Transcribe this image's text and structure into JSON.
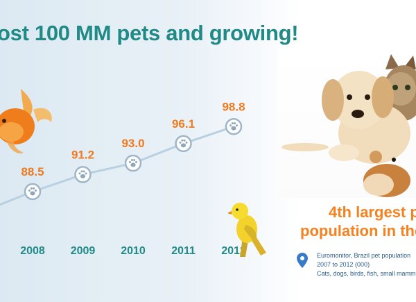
{
  "headline": "ost 100 MM pets and growing!",
  "chart_data": {
    "type": "line",
    "x": [
      "2008",
      "2009",
      "2010",
      "2011",
      "2012"
    ],
    "series": [
      {
        "values": [
          88.5,
          91.2,
          93.0,
          96.1,
          98.8
        ]
      }
    ],
    "value_labels": [
      "88.5",
      "91.2",
      "93.0",
      "96.1",
      "98.8"
    ],
    "marker": "paw-icon",
    "line_color": "#b8d0e2",
    "label_color": "#f07a1e",
    "year_color": "#1f8a86",
    "grid": false,
    "legend": "none"
  },
  "stat": {
    "line1": "4th largest pe",
    "line2": "population in the",
    "color": "#f58220"
  },
  "source": {
    "icon": "location-pin-icon",
    "line1": "Euromonitor, Brazil pet population",
    "line2": "2007 to 2012 (000)",
    "line3": "Cats, dogs, birds, fish, small mamm"
  }
}
